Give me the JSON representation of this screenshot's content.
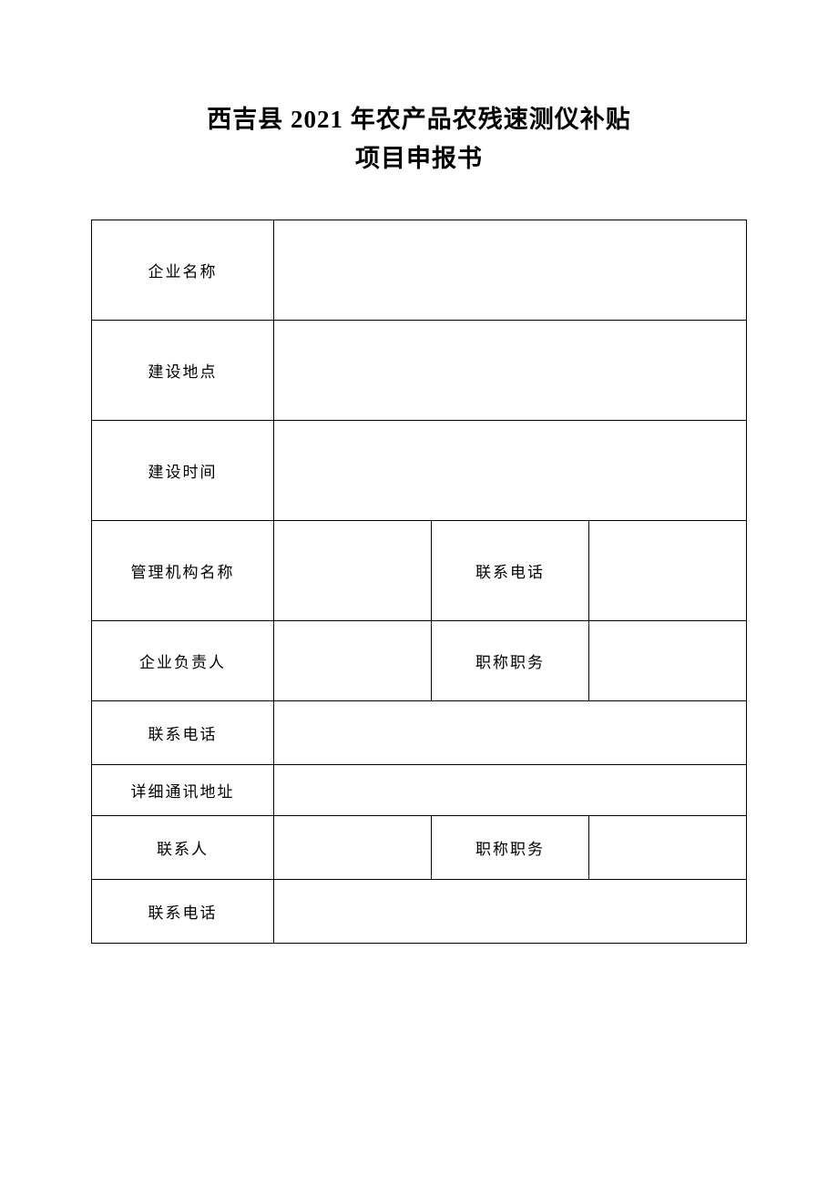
{
  "title_line1": "西吉县 2021 年农产品农残速测仪补贴",
  "title_line2": "项目申报书",
  "rows": {
    "company_name": "企业名称",
    "build_location": "建设地点",
    "build_time": "建设时间",
    "mgmt_org": "管理机构名称",
    "contact_phone_a": "联系电话",
    "company_leader": "企业负责人",
    "title_position_a": "职称职务",
    "contact_phone_b": "联系电话",
    "address": "详细通讯地址",
    "contact_person": "联系人",
    "title_position_b": "职称职务",
    "contact_phone_c": "联系电话"
  },
  "values": {
    "company_name": "",
    "build_location": "",
    "build_time": "",
    "mgmt_org": "",
    "contact_phone_a": "",
    "company_leader": "",
    "title_position_a": "",
    "contact_phone_b": "",
    "address": "",
    "contact_person": "",
    "title_position_b": "",
    "contact_phone_c": ""
  },
  "style": {
    "background_color": "#ffffff",
    "text_color": "#000000",
    "border_color": "#000000",
    "title_fontsize": 27,
    "cell_fontsize": 17,
    "font_family": "SimSun"
  }
}
